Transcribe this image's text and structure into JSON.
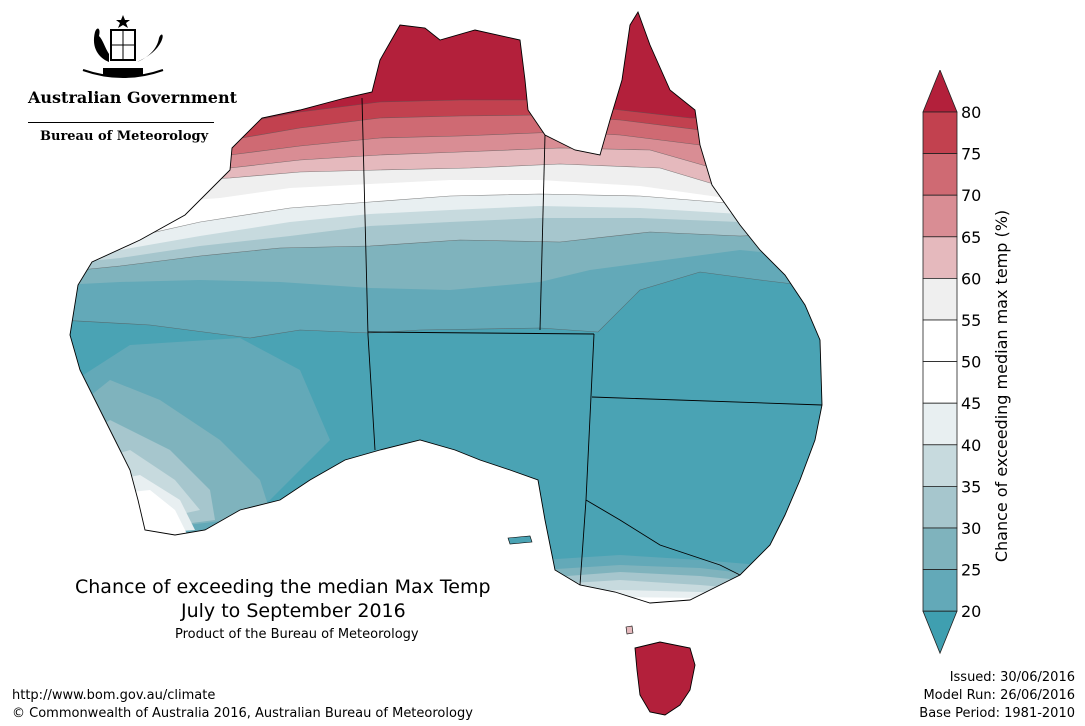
{
  "header": {
    "gov_name": "Australian Government",
    "agency": "Bureau of Meteorology",
    "emblem_icon": "coat-of-arms-icon"
  },
  "map": {
    "title_line1": "Chance of exceeding the median Max Temp",
    "title_line2": "July to September 2016",
    "product": "Product of the Bureau of Meteorology"
  },
  "legend": {
    "label": "Chance of exceeding median max temp (%)",
    "ticks": [
      "80",
      "75",
      "70",
      "65",
      "60",
      "55",
      "50",
      "45",
      "40",
      "35",
      "30",
      "25",
      "20"
    ],
    "colors": [
      "#b3203b",
      "#c2414f",
      "#cf6a73",
      "#d98d94",
      "#e5b9bd",
      "#efefef",
      "#ffffff",
      "#ffffff",
      "#e8eff1",
      "#c7dade",
      "#a6c6cd",
      "#7fb3bd",
      "#63a9b8",
      "#3f9fb0"
    ]
  },
  "footer": {
    "url": "http://www.bom.gov.au/climate",
    "copyright": "© Commonwealth of Australia 2016, Australian Bureau of Meteorology",
    "issued": "Issued: 30/06/2016",
    "model_run": "Model Run: 26/06/2016",
    "base_period": "Base Period: 1981-2010"
  }
}
